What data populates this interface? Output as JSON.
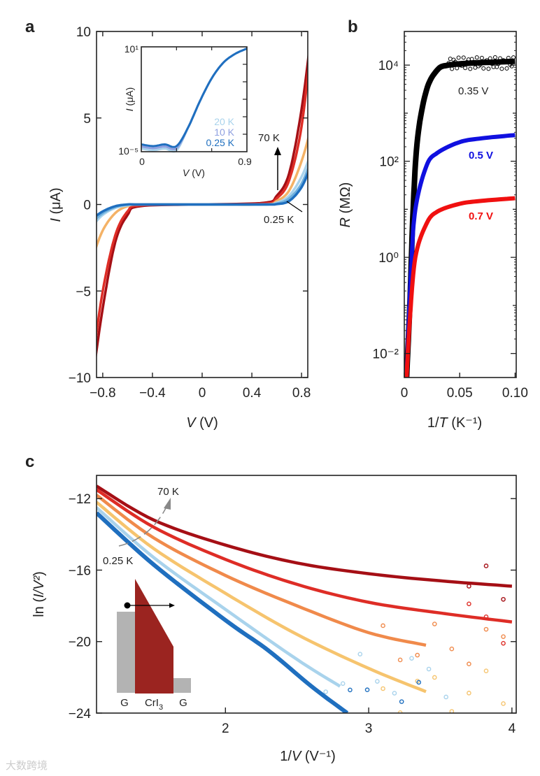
{
  "watermark": "大数跨境",
  "chart_data": [
    {
      "panel": "a",
      "type": "line",
      "xlabel_var": "V",
      "xlabel_unit": " (V)",
      "ylabel_var": "I",
      "ylabel_unit": " (μA)",
      "xlim": [
        -0.85,
        0.85
      ],
      "ylim": [
        -10,
        10
      ],
      "xticks": [
        -0.8,
        -0.4,
        0,
        0.4,
        0.8
      ],
      "xtick_labels": [
        "−0.8",
        "−0.4",
        "0",
        "0.4",
        "0.8"
      ],
      "yticks": [
        10,
        5,
        0,
        -5,
        -10
      ],
      "ytick_labels": [
        "10",
        "5",
        "0",
        "−5",
        "−10"
      ],
      "x": [
        -0.88,
        -0.8,
        -0.7,
        -0.6,
        -0.5,
        0,
        0.5,
        0.6,
        0.7,
        0.8,
        0.88
      ],
      "series": [
        {
          "name": "70 K",
          "color": "#a50f15",
          "values": [
            -10,
            -6,
            -2.2,
            -0.6,
            -0.1,
            0,
            0.1,
            0.5,
            1.8,
            5.5,
            10
          ]
        },
        {
          "name": "",
          "color": "#de2d26",
          "values": [
            -9,
            -5,
            -1.8,
            -0.4,
            -0.05,
            0,
            0.05,
            0.35,
            1.4,
            4.5,
            9.5
          ]
        },
        {
          "name": "",
          "color": "#f4b266",
          "values": [
            -3,
            -1.5,
            -0.5,
            -0.1,
            0,
            0,
            0,
            0.2,
            0.8,
            2.5,
            4.5
          ]
        },
        {
          "name": "20 K",
          "color": "#a9d3ec",
          "values": [
            -1.2,
            -0.6,
            -0.2,
            -0.05,
            0,
            0,
            0,
            0.1,
            0.5,
            1.6,
            3
          ]
        },
        {
          "name": "10 K",
          "color": "#6fb0dd",
          "values": [
            -1,
            -0.5,
            -0.15,
            0,
            0,
            0,
            0,
            0.05,
            0.35,
            1.2,
            2.6
          ]
        },
        {
          "name": "0.25 K",
          "color": "#1f6fbf",
          "values": [
            -0.8,
            -0.4,
            -0.1,
            0,
            0,
            0,
            0,
            0.02,
            0.2,
            1,
            2.3
          ]
        }
      ],
      "annotations": {
        "high": "70 K",
        "low": "0.25 K"
      },
      "inset": {
        "type": "line",
        "yscale": "log",
        "xlabel_var": "V",
        "xlabel_unit": " (V)",
        "ylabel_var": "I",
        "ylabel_unit": " (μA)",
        "xlim": [
          0,
          0.9
        ],
        "ylim_exp": [
          -5,
          1
        ],
        "xtick_labels": [
          "0",
          "0.9"
        ],
        "ytick_labels": [
          "10¹",
          "10⁻⁵"
        ],
        "x": [
          0,
          0.1,
          0.2,
          0.3,
          0.4,
          0.5,
          0.6,
          0.7,
          0.8,
          0.9
        ],
        "log10_values": [
          -4.7,
          -4.8,
          -4.7,
          -4.8,
          -3.6,
          -2.1,
          -0.8,
          0.1,
          0.6,
          0.9
        ],
        "legend": [
          {
            "label": "20 K",
            "color": "#a9d3ec"
          },
          {
            "label": "10 K",
            "color": "#8fa0e0"
          },
          {
            "label": "0.25 K",
            "color": "#1f6fbf"
          }
        ]
      }
    },
    {
      "panel": "b",
      "type": "scatter",
      "yscale": "log",
      "xlabel": "1/",
      "xlabel_var": "T",
      "xlabel_unit": " (K⁻¹)",
      "ylabel_var": "R",
      "ylabel_unit": " (MΩ)",
      "xlim": [
        0,
        0.101
      ],
      "ylim_exp": [
        -2.5,
        4.7
      ],
      "xticks": [
        0,
        0.05,
        0.1
      ],
      "xtick_labels": [
        "0",
        "0.05",
        "0.10"
      ],
      "yticks_exp": [
        4,
        2,
        0,
        -2
      ],
      "ytick_labels": [
        "10⁴",
        "10²",
        "10⁰",
        "10⁻²"
      ],
      "series": [
        {
          "name": "0.35 V",
          "color": "#000000",
          "x": [
            0.002,
            0.005,
            0.008,
            0.012,
            0.02,
            0.03,
            0.04,
            0.06,
            0.08,
            0.1
          ],
          "values": [
            0.003,
            0.1,
            10,
            300,
            3000,
            8000,
            10000,
            11000,
            11500,
            12000
          ]
        },
        {
          "name": "0.5 V",
          "color": "#1010e0",
          "x": [
            0.002,
            0.006,
            0.01,
            0.02,
            0.03,
            0.05,
            0.07,
            0.1
          ],
          "values": [
            0.003,
            0.5,
            10,
            80,
            150,
            250,
            300,
            350
          ]
        },
        {
          "name": "0.7 V",
          "color": "#f01010",
          "x": [
            0.002,
            0.005,
            0.01,
            0.02,
            0.03,
            0.05,
            0.07,
            0.1
          ],
          "values": [
            0.003,
            0.05,
            1,
            5,
            9,
            13,
            15,
            17
          ]
        }
      ]
    },
    {
      "panel": "c",
      "type": "scatter",
      "xlabel": "1/",
      "xlabel_var": "V",
      "xlabel_unit": " (V⁻¹)",
      "ylabel": "ln (",
      "ylabel_var": "I/V²",
      "ylabel_unit": ")",
      "xlim": [
        1.1,
        4.03
      ],
      "ylim": [
        -24,
        -10.7
      ],
      "xticks": [
        2,
        3,
        4
      ],
      "xtick_labels": [
        "2",
        "3",
        "4"
      ],
      "yticks": [
        -12,
        -16,
        -20,
        -24
      ],
      "ytick_labels": [
        "−12",
        "−16",
        "−20",
        "−24"
      ],
      "series": [
        {
          "name": "70 K",
          "color": "#a50f15",
          "x": [
            1.1,
            1.5,
            2,
            2.5,
            3,
            3.5,
            4
          ],
          "values": [
            -11.3,
            -13.2,
            -14.6,
            -15.6,
            -16.2,
            -16.6,
            -16.9
          ]
        },
        {
          "name": "",
          "color": "#de2d26",
          "x": [
            1.1,
            1.5,
            2,
            2.5,
            3,
            3.5,
            4
          ],
          "values": [
            -11.5,
            -13.6,
            -15.4,
            -16.8,
            -17.8,
            -18.4,
            -18.9
          ]
        },
        {
          "name": "",
          "color": "#f08a4b",
          "x": [
            1.1,
            1.5,
            2,
            2.5,
            3,
            3.4
          ],
          "values": [
            -11.8,
            -14.2,
            -16.3,
            -18.0,
            -19.5,
            -20.2
          ]
        },
        {
          "name": "",
          "color": "#f6c46e",
          "x": [
            1.1,
            1.5,
            2,
            2.5,
            3,
            3.4
          ],
          "values": [
            -12.2,
            -14.8,
            -17.3,
            -19.6,
            -21.5,
            -22.8
          ]
        },
        {
          "name": "",
          "color": "#a9d3ec",
          "x": [
            1.1,
            1.5,
            2,
            2.5,
            2.8
          ],
          "values": [
            -12.5,
            -15.3,
            -18.2,
            -21.0,
            -22.5
          ]
        },
        {
          "name": "0.25 K",
          "color": "#1f6fbf",
          "x": [
            1.1,
            1.5,
            2,
            2.3,
            2.6,
            2.85
          ],
          "values": [
            -12.8,
            -15.7,
            -18.8,
            -20.5,
            -22.5,
            -24
          ]
        }
      ],
      "annotations": {
        "high": "70 K",
        "low": "0.25 K"
      },
      "inset_diagram": {
        "labels": [
          "G",
          "CrI",
          "3",
          "G"
        ],
        "barrier_color": "#9b2420",
        "electrode_color": "#b3b3b3"
      }
    }
  ],
  "panel_labels": [
    "a",
    "b",
    "c"
  ]
}
